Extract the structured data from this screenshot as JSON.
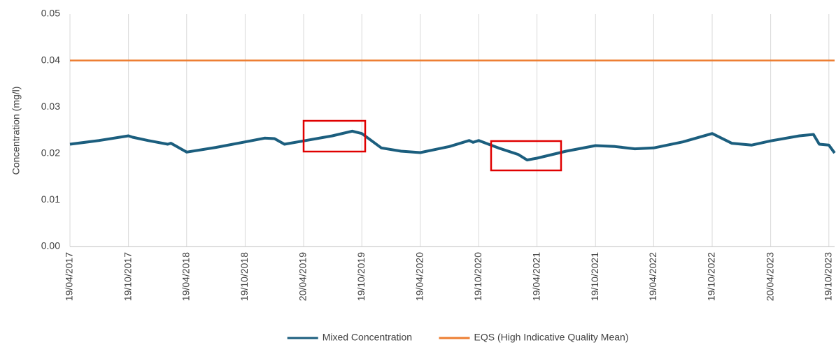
{
  "chart_data": {
    "type": "line",
    "y_label": "Concentration (mg/l)",
    "x": [
      "19/04/2017",
      "19/07/2017",
      "19/10/2017",
      "01/11/2017",
      "19/12/2017",
      "19/02/2018",
      "01/03/2018",
      "19/04/2018",
      "19/07/2018",
      "19/10/2018",
      "19/12/2018",
      "19/01/2019",
      "19/02/2019",
      "19/04/2019",
      "19/07/2019",
      "19/09/2019",
      "19/10/2019",
      "19/12/2019",
      "19/02/2020",
      "19/04/2020",
      "19/07/2020",
      "19/09/2020",
      "01/10/2020",
      "19/10/2020",
      "19/12/2020",
      "19/02/2021",
      "19/03/2021",
      "19/04/2021",
      "19/07/2021",
      "19/10/2021",
      "19/12/2021",
      "19/02/2022",
      "19/04/2022",
      "19/07/2022",
      "19/10/2022",
      "19/12/2022",
      "19/02/2023",
      "19/04/2023",
      "19/07/2023",
      "01/09/2023",
      "19/09/2023",
      "19/10/2023",
      "06/11/2023"
    ],
    "series": [
      {
        "name": "Mixed Concentration",
        "color": "#1b5e7e",
        "values": [
          0.022,
          0.0228,
          0.0238,
          0.0235,
          0.0228,
          0.022,
          0.0222,
          0.0203,
          0.0213,
          0.0225,
          0.0233,
          0.0232,
          0.022,
          0.0227,
          0.0238,
          0.0248,
          0.0243,
          0.0212,
          0.0205,
          0.0202,
          0.0215,
          0.0228,
          0.0224,
          0.0228,
          0.0212,
          0.0198,
          0.0186,
          0.019,
          0.0205,
          0.0217,
          0.0215,
          0.021,
          0.0212,
          0.0225,
          0.0243,
          0.0222,
          0.0218,
          0.0227,
          0.0238,
          0.0241,
          0.022,
          0.0218,
          0.0201
        ]
      },
      {
        "name": "EQS (High Indicative Quality Mean)",
        "color": "#ed7d31",
        "values": [
          0.04,
          0.04,
          0.04,
          0.04,
          0.04,
          0.04,
          0.04,
          0.04,
          0.04,
          0.04,
          0.04,
          0.04,
          0.04,
          0.04,
          0.04,
          0.04,
          0.04,
          0.04,
          0.04,
          0.04,
          0.04,
          0.04,
          0.04,
          0.04,
          0.04,
          0.04,
          0.04,
          0.04,
          0.04,
          0.04,
          0.04,
          0.04,
          0.04,
          0.04,
          0.04,
          0.04,
          0.04,
          0.04,
          0.04,
          0.04,
          0.04,
          0.04,
          0.04
        ]
      }
    ],
    "xlim": [
      "19/04/2017",
      "06/11/2023"
    ],
    "xticks": [
      "19/04/2017",
      "19/10/2017",
      "19/04/2018",
      "19/10/2018",
      "20/04/2019",
      "19/10/2019",
      "19/04/2020",
      "19/10/2020",
      "19/04/2021",
      "19/10/2021",
      "19/04/2022",
      "19/10/2022",
      "20/04/2023",
      "19/10/2023"
    ],
    "ylim": [
      0,
      0.05
    ],
    "yticks": [
      {
        "value": 0,
        "label": "0.00"
      },
      {
        "value": 0.01,
        "label": "0.01"
      },
      {
        "value": 0.02,
        "label": "0.02"
      },
      {
        "value": 0.03,
        "label": "0.03"
      },
      {
        "value": 0.04,
        "label": "0.04"
      },
      {
        "value": 0.05,
        "label": "0.05"
      }
    ],
    "grid": "x",
    "legend": "bottom"
  }
}
